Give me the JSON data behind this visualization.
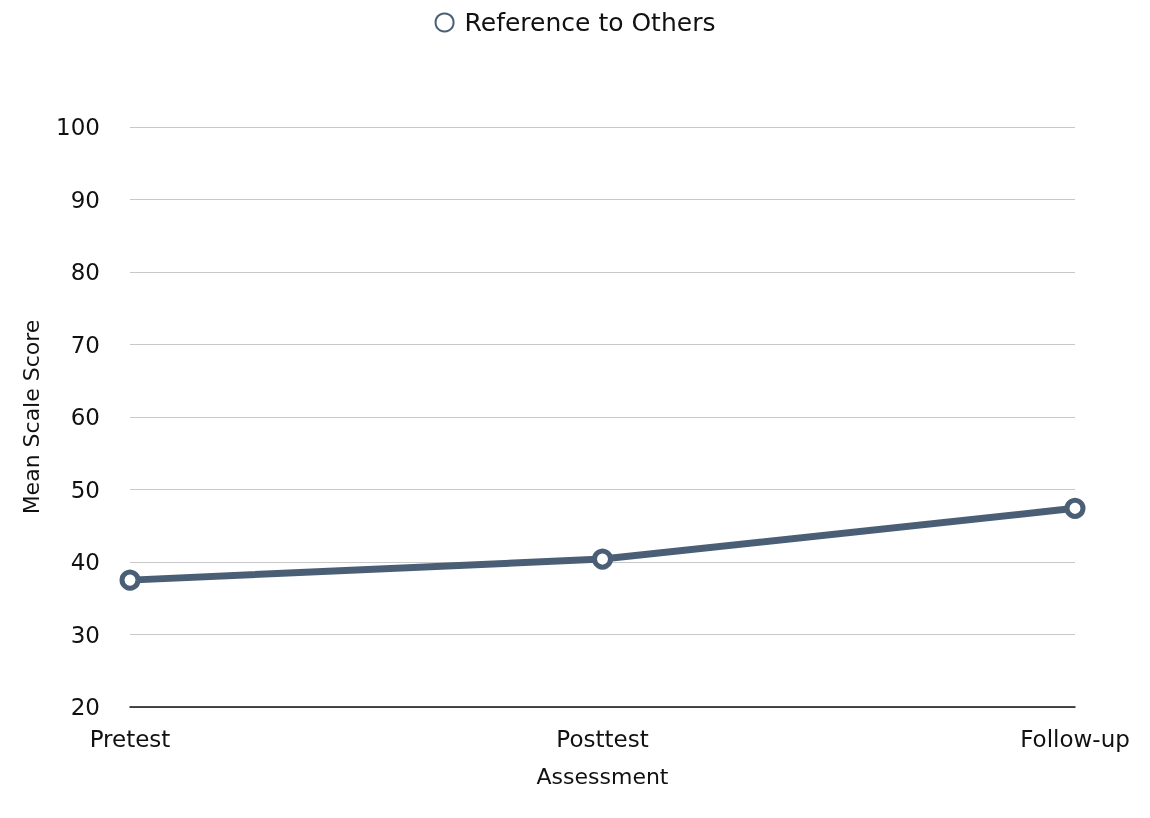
{
  "chart_data": {
    "type": "line",
    "xlabel": "Assessment",
    "ylabel": "Mean Scale Score",
    "categories": [
      "Pretest",
      "Posttest",
      "Follow-up"
    ],
    "series": [
      {
        "name": "Reference to Others",
        "color": "#4a5f75",
        "values": [
          37.5,
          40.4,
          47.4
        ]
      }
    ],
    "ylim": [
      20,
      100
    ],
    "yticks": [
      20,
      30,
      40,
      50,
      60,
      70,
      80,
      90,
      100
    ],
    "grid": "y",
    "legend": "top",
    "marker": "circle",
    "line_style": "solid"
  }
}
